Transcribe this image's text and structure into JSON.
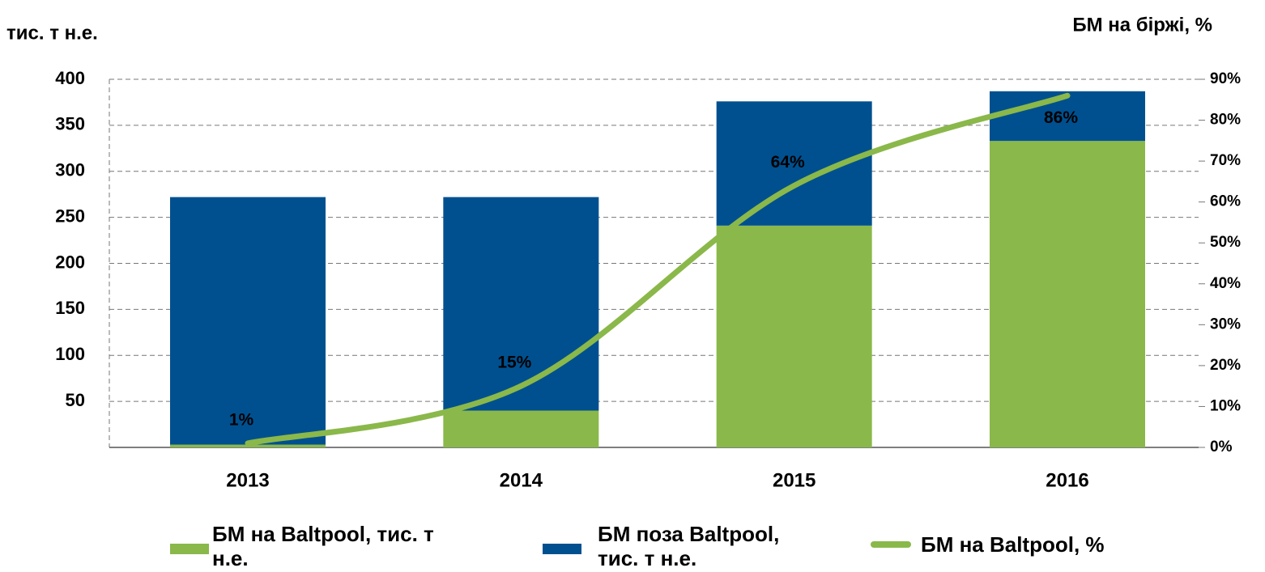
{
  "chart_data": {
    "type": "bar",
    "y_axis_label": "тис. т н.е.",
    "y2_axis_label": "БМ на біржі, %",
    "categories": [
      "2013",
      "2014",
      "2015",
      "2016"
    ],
    "series": [
      {
        "name": "БМ на Baltpool, тис. т н.е.",
        "color": "#8ab84a",
        "values": [
          3,
          40,
          241,
          333
        ]
      },
      {
        "name": "БМ поза Baltpool, тис. т н.е.",
        "color": "#00508f",
        "values": [
          269,
          232,
          135,
          54
        ]
      },
      {
        "name": "БМ на Baltpool, %",
        "color": "#8ab84a",
        "type": "line",
        "axis": "y2",
        "values": [
          1,
          15,
          64,
          86
        ],
        "value_labels": [
          "1%",
          "15%",
          "64%",
          "86%"
        ]
      }
    ],
    "stacked": true,
    "ylim": [
      0,
      400
    ],
    "yticks": [
      50,
      100,
      150,
      200,
      250,
      300,
      350,
      400
    ],
    "y2lim": [
      0,
      90
    ],
    "y2ticks": [
      {
        "value": 0,
        "label": "0%"
      },
      {
        "value": 10,
        "label": "10%"
      },
      {
        "value": 20,
        "label": "20%"
      },
      {
        "value": 30,
        "label": "30%"
      },
      {
        "value": 40,
        "label": "40%"
      },
      {
        "value": 50,
        "label": "50%"
      },
      {
        "value": 60,
        "label": "60%"
      },
      {
        "value": 70,
        "label": "70%"
      },
      {
        "value": 80,
        "label": "80%"
      },
      {
        "value": 90,
        "label": "90%"
      }
    ],
    "grid": true,
    "legend": "bottom"
  }
}
